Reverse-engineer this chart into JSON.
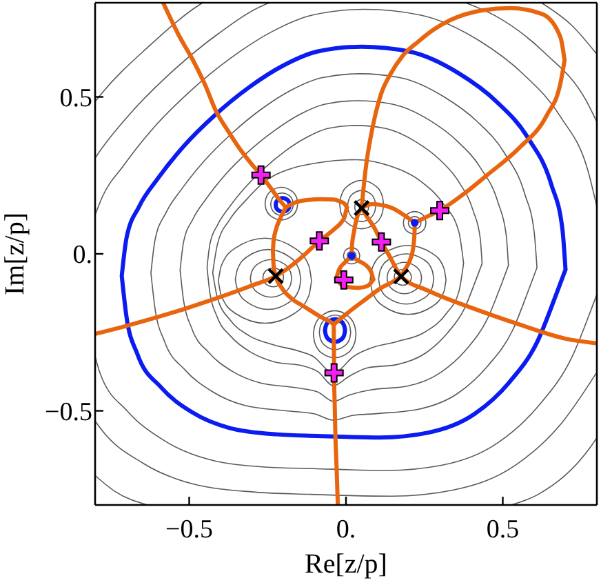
{
  "chart_data": {
    "type": "line",
    "xlabel": "Re[z/p]",
    "ylabel": "Im[z/p]",
    "xlim": [
      -0.8,
      0.8
    ],
    "ylim": [
      -0.8,
      0.8
    ],
    "xticks": [
      {
        "value": -0.5,
        "label": "−0.5"
      },
      {
        "value": 0,
        "label": "0."
      },
      0.5
    ],
    "yticks": [
      {
        "value": -0.5,
        "label": "−0.5"
      },
      {
        "value": 0,
        "label": "0."
      },
      0.5
    ],
    "series": [
      {
        "color": "#5a5a5a",
        "x": [
          -0.622,
          -0.609,
          -0.574,
          -0.522,
          -0.452,
          -0.365,
          -0.27,
          -0.174,
          -0.078,
          0.044,
          0.174,
          0.313,
          0.418,
          0.505,
          0.57,
          0.6,
          0.609,
          null,
          -0.622,
          -0.609,
          -0.579,
          -0.513,
          -0.426,
          -0.322,
          -0.191,
          -0.1,
          -0.04,
          0.02,
          0.096,
          0.226,
          0.357,
          0.452,
          0.531,
          0.583,
          0.609
        ],
        "values": [
          -0.061,
          0.044,
          0.131,
          0.209,
          0.296,
          0.383,
          0.461,
          0.522,
          0.561,
          0.574,
          0.561,
          0.5,
          0.422,
          0.322,
          0.191,
          0.07,
          -0.044,
          null,
          -0.061,
          -0.174,
          -0.278,
          -0.37,
          -0.439,
          -0.483,
          -0.5,
          -0.51,
          -0.53,
          -0.515,
          -0.509,
          -0.496,
          -0.444,
          -0.357,
          -0.244,
          -0.113,
          -0.044
        ]
      },
      {
        "color": "#5a5a5a",
        "x": [
          -0.529,
          -0.518,
          -0.488,
          -0.444,
          -0.385,
          -0.311,
          -0.229,
          -0.148,
          -0.067,
          0.037,
          0.148,
          0.266,
          0.355,
          0.429,
          0.485,
          0.511,
          0.518,
          null,
          -0.529,
          -0.518,
          -0.492,
          -0.437,
          -0.363,
          -0.274,
          -0.163,
          -0.09,
          -0.04,
          0.01,
          0.081,
          0.192,
          0.303,
          0.385,
          0.451,
          0.496,
          0.518
        ],
        "values": [
          -0.052,
          0.037,
          0.111,
          0.178,
          0.252,
          0.326,
          0.392,
          0.444,
          0.477,
          0.488,
          0.477,
          0.426,
          0.359,
          0.274,
          0.163,
          0.059,
          -0.037,
          null,
          -0.052,
          -0.148,
          -0.237,
          -0.315,
          -0.374,
          -0.411,
          -0.426,
          -0.44,
          -0.47,
          -0.45,
          -0.433,
          -0.422,
          -0.377,
          -0.303,
          -0.207,
          -0.096,
          -0.037
        ]
      },
      {
        "color": "#5a5a5a",
        "x": [
          -0.443,
          -0.434,
          -0.409,
          -0.372,
          -0.322,
          -0.26,
          -0.192,
          -0.124,
          -0.056,
          0.031,
          0.124,
          0.223,
          0.298,
          0.36,
          0.406,
          0.428,
          0.434,
          null,
          -0.443,
          -0.434,
          -0.412,
          -0.366,
          -0.304,
          -0.229,
          -0.136,
          -0.09,
          -0.04,
          0.01,
          0.068,
          0.161,
          0.254,
          0.322,
          0.378,
          0.415,
          0.434
        ],
        "values": [
          -0.043,
          0.031,
          0.093,
          0.149,
          0.211,
          0.273,
          0.329,
          0.372,
          0.4,
          0.409,
          0.4,
          0.357,
          0.301,
          0.229,
          0.136,
          0.05,
          -0.031,
          null,
          -0.043,
          -0.124,
          -0.198,
          -0.264,
          -0.313,
          -0.344,
          -0.357,
          -0.375,
          -0.42,
          -0.39,
          -0.363,
          -0.353,
          -0.316,
          -0.254,
          -0.174,
          -0.081,
          -0.031
        ]
      },
      {
        "color": "#5a5a5a",
        "x": [
          -0.425,
          -0.41,
          -0.37,
          -0.32,
          -0.26,
          -0.18,
          -0.09,
          0.03,
          0.14,
          0.24,
          0.31,
          0.36,
          0.375,
          null,
          -0.425,
          -0.41,
          -0.37,
          -0.31,
          -0.23,
          -0.15,
          -0.1,
          -0.06,
          -0.04,
          -0.02,
          0.02,
          0.08,
          0.16,
          0.25,
          0.32,
          0.36,
          0.375
        ],
        "values": [
          -0.06,
          0.03,
          0.11,
          0.17,
          0.23,
          0.27,
          0.29,
          0.3,
          0.28,
          0.23,
          0.16,
          0.07,
          -0.03,
          null,
          -0.06,
          -0.14,
          -0.21,
          -0.26,
          -0.29,
          -0.31,
          -0.33,
          -0.37,
          -0.385,
          -0.37,
          -0.33,
          -0.3,
          -0.28,
          -0.25,
          -0.19,
          -0.12,
          -0.03
        ]
      },
      {
        "color": "#5a5a5a",
        "x": [
          -0.8,
          -0.779,
          -0.708,
          -0.614,
          -0.496,
          -0.366,
          -0.236,
          -0.106,
          0.059,
          0.236,
          0.425,
          0.566,
          0.684,
          0.773,
          0.8,
          null,
          -0.8,
          -0.785,
          -0.696,
          -0.578,
          -0.437,
          -0.26,
          -0.106,
          0.13,
          0.307,
          0.484,
          0.614,
          0.72,
          0.791,
          0.8
        ],
        "values": [
          0.124,
          0.177,
          0.283,
          0.401,
          0.519,
          0.625,
          0.708,
          0.761,
          0.779,
          0.761,
          0.679,
          0.572,
          0.437,
          0.26,
          0.15,
          null,
          -0.326,
          -0.378,
          -0.502,
          -0.596,
          -0.655,
          -0.679,
          -0.684,
          -0.69,
          -0.673,
          -0.602,
          -0.484,
          -0.33,
          -0.153,
          -0.129
        ]
      },
      {
        "color": "#5a5a5a",
        "x": [
          -0.8,
          -0.792,
          -0.686,
          -0.554,
          -0.409,
          -0.264,
          -0.244
        ],
        "values": [
          0.305,
          0.317,
          0.449,
          0.581,
          0.7,
          0.792,
          0.8
        ]
      },
      {
        "color": "#5a5a5a",
        "x": [
          0.381,
          0.475,
          0.634,
          0.766,
          0.8
        ],
        "values": [
          0.8,
          0.759,
          0.64,
          0.488,
          0.42
        ]
      },
      {
        "color": "#5a5a5a",
        "x": [
          -0.8,
          -0.779,
          -0.647,
          -0.488,
          -0.29,
          -0.119,
          0.145,
          0.343,
          0.541,
          0.686,
          0.8
        ],
        "values": [
          -0.532,
          -0.561,
          -0.667,
          -0.733,
          -0.759,
          -0.766,
          -0.772,
          -0.752,
          -0.673,
          -0.541,
          -0.377
        ]
      },
      {
        "color": "#5a5a5a",
        "x": [
          -0.8,
          -0.78,
          -0.63,
          -0.465,
          -0.457
        ],
        "values": [
          0.485,
          0.51,
          0.66,
          0.795,
          0.8
        ]
      },
      {
        "color": "#5a5a5a",
        "x": [
          0.623,
          0.72,
          0.8
        ],
        "values": [
          0.8,
          0.728,
          0.636
        ]
      },
      {
        "color": "#5a5a5a",
        "x": [
          -0.8,
          -0.735,
          -0.633
        ],
        "values": [
          -0.706,
          -0.758,
          -0.8
        ]
      },
      {
        "color": "#5a5a5a",
        "x": [
          0.527,
          0.615,
          0.78,
          0.8
        ],
        "values": [
          -0.8,
          -0.765,
          -0.615,
          -0.586
        ]
      },
      {
        "color": "#5a5a5a",
        "x": [
          -0.265,
          -0.263,
          -0.253,
          -0.232,
          -0.21,
          -0.201,
          -0.199,
          null,
          -0.265,
          -0.263,
          -0.253,
          -0.232,
          -0.21,
          -0.201,
          -0.199
        ],
        "values": [
          -0.075,
          -0.065,
          -0.052,
          -0.045,
          -0.052,
          -0.065,
          -0.075,
          null,
          -0.075,
          -0.085,
          -0.098,
          -0.105,
          -0.098,
          -0.085,
          -0.075
        ]
      },
      {
        "color": "#5a5a5a",
        "x": [
          -0.305,
          -0.301,
          -0.281,
          -0.239,
          -0.197,
          -0.177,
          -0.173,
          null,
          -0.305,
          -0.301,
          -0.281,
          -0.239,
          -0.197,
          -0.177,
          -0.173
        ],
        "values": [
          -0.078,
          -0.058,
          -0.032,
          -0.018,
          -0.032,
          -0.058,
          -0.078,
          null,
          -0.078,
          -0.099,
          -0.124,
          -0.138,
          -0.124,
          -0.099,
          -0.078
        ]
      },
      {
        "color": "#5a5a5a",
        "x": [
          -0.353,
          -0.346,
          -0.315,
          -0.248,
          -0.181,
          -0.15,
          -0.144,
          null,
          -0.353,
          -0.346,
          -0.315,
          -0.248,
          -0.181,
          -0.15,
          -0.144
        ],
        "values": [
          -0.082,
          -0.049,
          -0.009,
          0.014,
          -0.009,
          -0.049,
          -0.082,
          null,
          -0.082,
          -0.114,
          -0.154,
          -0.177,
          -0.154,
          -0.114,
          -0.082
        ]
      },
      {
        "color": "#5a5a5a",
        "x": [
          -0.407,
          -0.398,
          -0.354,
          -0.258,
          -0.163,
          -0.118,
          -0.11,
          null,
          -0.407,
          -0.398,
          -0.354,
          -0.258,
          -0.163,
          -0.118,
          -0.11
        ],
        "values": [
          -0.086,
          -0.039,
          0.018,
          0.05,
          0.018,
          -0.039,
          -0.086,
          null,
          -0.086,
          -0.132,
          -0.189,
          -0.221,
          -0.189,
          -0.132,
          -0.086
        ]
      },
      {
        "color": "#5a5a5a",
        "x": [
          0.154,
          0.155,
          0.163,
          0.181,
          0.199,
          0.207,
          0.209,
          null,
          0.154,
          0.155,
          0.163,
          0.181,
          0.199,
          0.207,
          0.209
        ],
        "values": [
          -0.075,
          -0.066,
          -0.055,
          -0.05,
          -0.055,
          -0.066,
          -0.075,
          null,
          -0.075,
          -0.083,
          -0.094,
          -0.1,
          -0.094,
          -0.083,
          -0.075
        ]
      },
      {
        "color": "#5a5a5a",
        "x": [
          0.131,
          0.134,
          0.151,
          0.186,
          0.221,
          0.238,
          0.241,
          null,
          0.131,
          0.134,
          0.151,
          0.186,
          0.221,
          0.238,
          0.241
        ],
        "values": [
          -0.077,
          -0.06,
          -0.039,
          -0.027,
          -0.039,
          -0.06,
          -0.077,
          null,
          -0.077,
          -0.094,
          -0.115,
          -0.127,
          -0.115,
          -0.094,
          -0.077
        ]
      },
      {
        "color": "#5a5a5a",
        "x": [
          0.104,
          0.109,
          0.135,
          0.192,
          0.249,
          0.275,
          0.28,
          null,
          0.104,
          0.109,
          0.135,
          0.192,
          0.249,
          0.275,
          0.28
        ],
        "values": [
          -0.08,
          -0.053,
          -0.019,
          0,
          -0.019,
          -0.053,
          -0.08,
          null,
          -0.08,
          -0.107,
          -0.141,
          -0.16,
          -0.141,
          -0.107,
          -0.08
        ]
      },
      {
        "color": "#5a5a5a",
        "x": [
          0.077,
          0.084,
          0.12,
          0.198,
          0.276,
          0.312,
          0.319,
          null,
          0.077,
          0.084,
          0.12,
          0.198,
          0.276,
          0.312,
          0.319
        ],
        "values": [
          -0.083,
          -0.045,
          0.001,
          0.027,
          0.001,
          -0.045,
          -0.083,
          null,
          -0.083,
          -0.121,
          -0.167,
          -0.193,
          -0.167,
          -0.121,
          -0.083
        ]
      },
      {
        "color": "#5a5a5a",
        "x": [
          0.028,
          0.029,
          0.036,
          0.05,
          0.064,
          0.071,
          0.072,
          null,
          0.028,
          0.029,
          0.036,
          0.05,
          0.064,
          0.071,
          0.072
        ],
        "values": [
          0.149,
          0.158,
          0.168,
          0.174,
          0.168,
          0.158,
          0.149,
          null,
          0.149,
          0.141,
          0.131,
          0.125,
          0.131,
          0.141,
          0.149
        ]
      },
      {
        "color": "#5a5a5a",
        "x": [
          0.005,
          0.008,
          0.021,
          0.05,
          0.079,
          0.092,
          0.095,
          null,
          0.005,
          0.008,
          0.021,
          0.05,
          0.079,
          0.092,
          0.095
        ],
        "values": [
          0.153,
          0.17,
          0.191,
          0.202,
          0.191,
          0.17,
          0.153,
          null,
          0.153,
          0.136,
          0.115,
          0.103,
          0.115,
          0.136,
          0.153
        ]
      },
      {
        "color": "#5a5a5a",
        "x": [
          -0.02,
          -0.016,
          0.005,
          0.05,
          0.095,
          0.116,
          0.12,
          null,
          -0.02,
          -0.016,
          0.005,
          0.05,
          0.095,
          0.116,
          0.12
        ],
        "values": [
          0.157,
          0.183,
          0.216,
          0.234,
          0.216,
          0.183,
          0.157,
          null,
          0.157,
          0.13,
          0.098,
          0.08,
          0.098,
          0.13,
          0.157
        ]
      },
      {
        "color": "#5a5a5a",
        "x": [
          -0.24,
          -0.238,
          -0.227,
          -0.204,
          -0.181,
          -0.17,
          -0.168,
          null,
          -0.24,
          -0.238,
          -0.227,
          -0.204,
          -0.181,
          -0.17,
          -0.168
        ],
        "values": [
          0.158,
          0.17,
          0.186,
          0.194,
          0.186,
          0.17,
          0.158,
          null,
          0.158,
          0.146,
          0.13,
          0.122,
          0.13,
          0.146,
          0.158
        ]
      },
      {
        "color": "#5a5a5a",
        "x": [
          -0.258,
          -0.255,
          -0.239,
          -0.206,
          -0.173,
          -0.157,
          -0.154,
          null,
          -0.258,
          -0.255,
          -0.239,
          -0.206,
          -0.173,
          -0.157,
          -0.154
        ],
        "values": [
          0.16,
          0.178,
          0.2,
          0.212,
          0.2,
          0.178,
          0.16,
          null,
          0.16,
          0.142,
          0.12,
          0.108,
          0.12,
          0.142,
          0.16
        ]
      },
      {
        "color": "#5a5a5a",
        "x": [
          -0.085,
          -0.082,
          -0.067,
          -0.035,
          -0.003,
          0.012,
          0.015,
          null,
          -0.085,
          -0.082,
          -0.067,
          -0.035,
          -0.003,
          0.012,
          0.015
        ],
        "values": [
          -0.25,
          -0.231,
          -0.208,
          -0.195,
          -0.208,
          -0.231,
          -0.25,
          null,
          -0.25,
          -0.269,
          -0.292,
          -0.305,
          -0.292,
          -0.269,
          -0.25
        ]
      },
      {
        "color": "#5a5a5a",
        "x": [
          -0.104,
          -0.1,
          -0.08,
          -0.036,
          0.008,
          0.028,
          0.032,
          null,
          -0.104,
          -0.1,
          -0.08,
          -0.036,
          0.008,
          0.028,
          0.032
        ],
        "values": [
          -0.256,
          -0.23,
          -0.199,
          -0.181,
          -0.199,
          -0.23,
          -0.256,
          null,
          -0.256,
          -0.282,
          -0.314,
          -0.331,
          -0.314,
          -0.282,
          -0.256
        ]
      },
      {
        "color": "#5a5a5a",
        "x": [
          0.004,
          0.005,
          0.009,
          0.018,
          0.027,
          0.031,
          0.032,
          null,
          0.004,
          0.005,
          0.009,
          0.018,
          0.027,
          0.031,
          0.032
        ],
        "values": [
          -0.006,
          -0.001,
          0.005,
          0.008,
          0.005,
          -0.001,
          -0.006,
          null,
          -0.006,
          -0.011,
          -0.017,
          -0.02,
          -0.017,
          -0.011,
          -0.006
        ]
      },
      {
        "color": "#5a5a5a",
        "x": [
          -0.008,
          -0.006,
          0.001,
          0.018,
          0.035,
          0.042,
          0.044,
          null,
          -0.008,
          -0.006,
          0.001,
          0.018,
          0.035,
          0.042,
          0.044
        ],
        "values": [
          -0.006,
          0.003,
          0.014,
          0.02,
          0.014,
          0.003,
          -0.006,
          null,
          -0.006,
          -0.015,
          -0.026,
          -0.032,
          -0.026,
          -0.015,
          -0.006
        ]
      },
      {
        "color": "#5a5a5a",
        "x": [
          0.199,
          0.2,
          0.206,
          0.219,
          0.232,
          0.238,
          0.239,
          null,
          0.199,
          0.2,
          0.206,
          0.219,
          0.232,
          0.238,
          0.239
        ],
        "values": [
          0.099,
          0.106,
          0.114,
          0.119,
          0.114,
          0.106,
          0.099,
          null,
          0.099,
          0.092,
          0.084,
          0.079,
          0.084,
          0.092,
          0.099
        ]
      },
      {
        "color": "#5a5a5a",
        "x": [
          0.183,
          0.185,
          0.196,
          0.219,
          0.242,
          0.253,
          0.255,
          null,
          0.183,
          0.185,
          0.196,
          0.219,
          0.242,
          0.253,
          0.255
        ],
        "values": [
          0.099,
          0.111,
          0.127,
          0.135,
          0.127,
          0.111,
          0.099,
          null,
          0.099,
          0.087,
          0.071,
          0.063,
          0.071,
          0.087,
          0.099
        ]
      },
      {
        "color": "#0b1cf0",
        "x": [
          -0.715,
          -0.7,
          -0.66,
          -0.6,
          -0.52,
          -0.42,
          -0.31,
          -0.2,
          -0.09,
          0.05,
          0.2,
          0.36,
          0.48,
          0.58,
          0.655,
          0.69,
          0.7,
          null,
          -0.715,
          -0.7,
          -0.665,
          -0.59,
          -0.49,
          -0.37,
          -0.22,
          -0.09,
          0.11,
          0.26,
          0.41,
          0.52,
          0.61,
          0.67,
          0.7
        ],
        "values": [
          -0.07,
          0.05,
          0.15,
          0.24,
          0.34,
          0.44,
          0.53,
          0.6,
          0.645,
          0.66,
          0.645,
          0.575,
          0.485,
          0.37,
          0.22,
          0.08,
          -0.05,
          null,
          -0.07,
          -0.2,
          -0.32,
          -0.425,
          -0.505,
          -0.555,
          -0.575,
          -0.58,
          -0.585,
          -0.57,
          -0.51,
          -0.41,
          -0.28,
          -0.13,
          -0.05
        ]
      },
      {
        "color": "#0b1cf0",
        "x": [
          -0.224,
          -0.223,
          -0.216,
          -0.202,
          -0.188,
          -0.181,
          -0.18,
          null,
          -0.224,
          -0.223,
          -0.216,
          -0.202,
          -0.188,
          -0.181,
          -0.18
        ],
        "values": [
          0.156,
          0.164,
          0.173,
          0.178,
          0.173,
          0.164,
          0.156,
          null,
          0.156,
          0.148,
          0.139,
          0.134,
          0.139,
          0.148,
          0.156
        ]
      },
      {
        "color": "#0b1cf0",
        "x": [
          -0.067,
          -0.065,
          -0.056,
          -0.035,
          -0.014,
          -0.005,
          -0.003,
          null,
          -0.067,
          -0.065,
          -0.056,
          -0.035,
          -0.014,
          -0.005,
          -0.003
        ],
        "values": [
          -0.244,
          -0.232,
          -0.216,
          -0.208,
          -0.216,
          -0.232,
          -0.244,
          null,
          -0.244,
          -0.256,
          -0.272,
          -0.28,
          -0.272,
          -0.256,
          -0.244
        ]
      },
      {
        "type": "scatter",
        "marker": "circle",
        "color": "#0b1cf0",
        "x": [
          0.018,
          0.219
        ],
        "values": [
          -0.006,
          0.099
        ]
      },
      {
        "color": "#e8650f",
        "x": [
          -0.583,
          -0.535,
          -0.488,
          -0.45,
          -0.415,
          -0.375,
          -0.341,
          -0.3,
          -0.271,
          -0.24,
          -0.212,
          -0.192
        ],
        "values": [
          0.8,
          0.7,
          0.617,
          0.54,
          0.456,
          0.39,
          0.338,
          0.285,
          0.251,
          0.21,
          0.172,
          0.148
        ]
      },
      {
        "color": "#e8650f",
        "x": [
          -0.192,
          -0.166,
          -0.151,
          -0.12,
          -0.078,
          -0.04,
          -0.019,
          -0.005,
          0.003
        ],
        "values": [
          0.148,
          0.162,
          0.167,
          0.172,
          0.174,
          0.173,
          0.167,
          0.16,
          0.148
        ]
      },
      {
        "color": "#e8650f",
        "x": [
          0.003,
          -0.001,
          -0.004,
          -0.015,
          -0.034,
          -0.06,
          -0.085,
          -0.11,
          -0.136,
          -0.18,
          -0.224,
          -0.298,
          -0.371,
          -0.444,
          -0.52,
          -0.62,
          -0.71,
          -0.8
        ],
        "values": [
          0.148,
          0.132,
          0.119,
          0.1,
          0.082,
          0.06,
          0.041,
          0.018,
          -0.006,
          -0.042,
          -0.071,
          -0.1,
          -0.127,
          -0.152,
          -0.177,
          -0.207,
          -0.232,
          -0.255
        ]
      },
      {
        "color": "#e8650f",
        "x": [
          -0.192,
          -0.21,
          -0.224,
          -0.231,
          -0.233
        ],
        "values": [
          0.148,
          0.112,
          0.075,
          0.04,
          0.01
        ]
      },
      {
        "color": "#e8650f",
        "x": [
          -0.233,
          -0.231,
          -0.224,
          -0.205,
          -0.17,
          -0.133,
          -0.082,
          -0.048,
          -0.039
        ],
        "values": [
          0.01,
          -0.035,
          -0.071,
          -0.108,
          -0.145,
          -0.168,
          -0.2,
          -0.218,
          -0.225
        ]
      },
      {
        "color": "#e8650f",
        "x": [
          -0.039,
          -0.0385,
          -0.038,
          -0.036,
          -0.034,
          -0.03,
          -0.026
        ],
        "values": [
          -0.225,
          -0.3,
          -0.379,
          -0.48,
          -0.57,
          -0.68,
          -0.8
        ]
      },
      {
        "color": "#e8650f",
        "x": [
          -0.039,
          -0.019,
          0.018,
          0.062,
          0.113,
          0.149,
          0.176
        ],
        "values": [
          -0.225,
          -0.208,
          -0.178,
          -0.145,
          -0.108,
          -0.089,
          -0.072
        ]
      },
      {
        "color": "#e8650f",
        "x": [
          0.018,
          -0.004,
          -0.022,
          -0.029
        ],
        "values": [
          -0.006,
          -0.028,
          -0.05,
          -0.072
        ]
      },
      {
        "color": "#e8650f",
        "x": [
          -0.029,
          -0.019,
          0.003,
          0.04,
          0.069,
          0.087
        ],
        "values": [
          -0.072,
          -0.094,
          -0.105,
          -0.108,
          -0.102,
          -0.082
        ]
      },
      {
        "color": "#e8650f",
        "x": [
          0.087,
          0.08,
          0.062,
          0.036,
          0.018
        ],
        "values": [
          -0.082,
          -0.057,
          -0.035,
          -0.02,
          -0.006
        ]
      },
      {
        "color": "#e8650f",
        "x": [
          0.05,
          0.062,
          0.091,
          0.113,
          0.142,
          0.16,
          0.176,
          0.259,
          0.406,
          0.553,
          0.699,
          0.8
        ],
        "values": [
          0.146,
          0.126,
          0.082,
          0.038,
          -0.013,
          -0.047,
          -0.072,
          -0.116,
          -0.174,
          -0.225,
          -0.27,
          -0.285
        ]
      },
      {
        "color": "#e8650f",
        "x": [
          0.05,
          0.055,
          0.065,
          0.078,
          0.093,
          0.112,
          0.142,
          0.18,
          0.23,
          0.28,
          0.333,
          0.435,
          0.523,
          0.626,
          0.684,
          0.697
        ],
        "values": [
          0.146,
          0.2,
          0.288,
          0.368,
          0.441,
          0.51,
          0.573,
          0.63,
          0.676,
          0.715,
          0.745,
          0.776,
          0.783,
          0.764,
          0.69,
          0.617
        ]
      },
      {
        "color": "#e8650f",
        "x": [
          0.697,
          0.684,
          0.64,
          0.553,
          0.45,
          0.377,
          0.299,
          0.259,
          0.219
        ],
        "values": [
          0.617,
          0.544,
          0.441,
          0.338,
          0.251,
          0.192,
          0.138,
          0.119,
          0.099
        ]
      },
      {
        "color": "#e8650f",
        "x": [
          0.05,
          0.084,
          0.142,
          0.186,
          0.219
        ],
        "values": [
          0.146,
          0.158,
          0.148,
          0.123,
          0.099
        ]
      },
      {
        "color": "#e8650f",
        "x": [
          0.219,
          0.2185,
          0.215,
          0.204,
          0.186,
          0.176
        ],
        "values": [
          0.099,
          0.068,
          0.024,
          -0.02,
          -0.053,
          -0.072
        ]
      },
      {
        "color": "#e8650f",
        "x": [
          0.05,
          0.036,
          0.025,
          0.019,
          0.018
        ],
        "values": [
          0.146,
          0.119,
          0.068,
          0.024,
          -0.006
        ]
      },
      {
        "type": "scatter",
        "marker": "x",
        "color": "#000000",
        "x": [
          -0.224,
          0.05,
          0.176
        ],
        "values": [
          -0.071,
          0.146,
          -0.072
        ]
      },
      {
        "type": "scatter",
        "marker": "cross",
        "color": "#f020f0",
        "x": [
          -0.271,
          -0.085,
          0.113,
          -0.007,
          0.299,
          -0.038
        ],
        "values": [
          0.251,
          0.041,
          0.038,
          -0.083,
          0.138,
          -0.379
        ]
      }
    ]
  }
}
